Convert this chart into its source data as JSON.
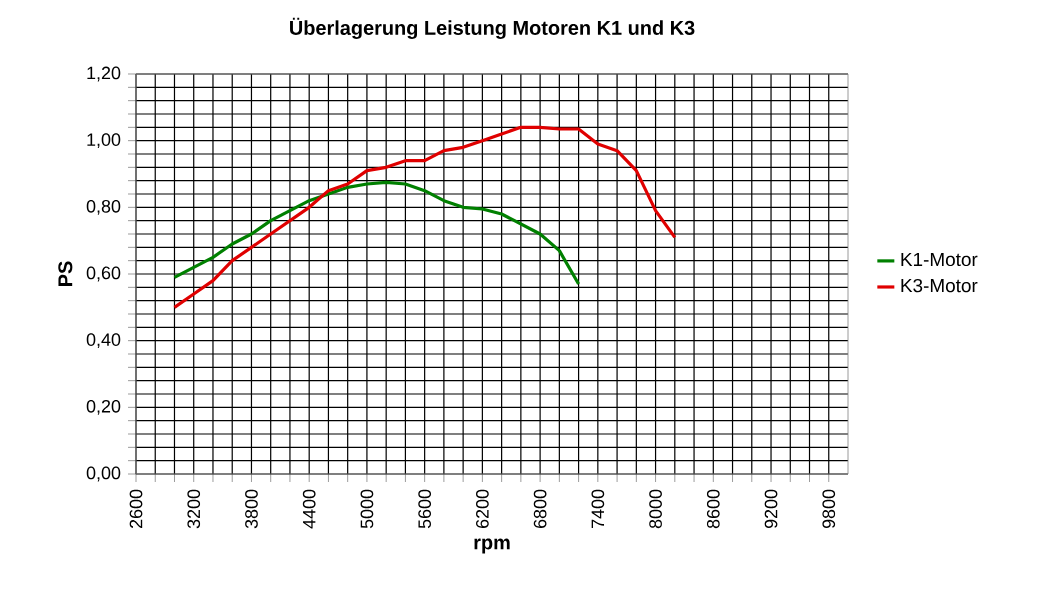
{
  "chart_data": {
    "type": "line",
    "title": "Überlagerung Leistung Motoren K1 und K3",
    "xlabel": "rpm",
    "ylabel": "PS",
    "xlim": [
      2600,
      10000
    ],
    "xticks": [
      2600,
      3200,
      3800,
      4400,
      5000,
      5600,
      6200,
      6800,
      7400,
      8000,
      8600,
      9200,
      9800
    ],
    "ylim": [
      0,
      1.2
    ],
    "yticks": [
      {
        "value": 0,
        "label": "0,00"
      },
      {
        "value": 0.2,
        "label": "0,20"
      },
      {
        "value": 0.4,
        "label": "0,40"
      },
      {
        "value": 0.6,
        "label": "0,60"
      },
      {
        "value": 0.8,
        "label": "0,80"
      },
      {
        "value": 1.0,
        "label": "1,00"
      },
      {
        "value": 1.2,
        "label": "1,20"
      }
    ],
    "grid": true,
    "legend": "right",
    "marker": "none",
    "line_style": "solid",
    "series": [
      {
        "name": "K1-Motor",
        "color": "#008000",
        "x": [
          3000,
          3200,
          3400,
          3600,
          3800,
          4000,
          4200,
          4400,
          4600,
          4800,
          5000,
          5200,
          5400,
          5600,
          5800,
          6000,
          6200,
          6400,
          6600,
          6800,
          7000,
          7200
        ],
        "values": [
          0.59,
          0.62,
          0.65,
          0.69,
          0.72,
          0.76,
          0.79,
          0.82,
          0.84,
          0.86,
          0.87,
          0.875,
          0.87,
          0.85,
          0.82,
          0.8,
          0.795,
          0.78,
          0.75,
          0.72,
          0.67,
          0.57
        ]
      },
      {
        "name": "K3-Motor",
        "color": "#e00000",
        "x": [
          3000,
          3200,
          3400,
          3600,
          3800,
          4000,
          4200,
          4400,
          4600,
          4800,
          5000,
          5200,
          5400,
          5600,
          5800,
          6000,
          6200,
          6400,
          6600,
          6800,
          7000,
          7200,
          7400,
          7600,
          7800,
          8000,
          8200
        ],
        "values": [
          0.5,
          0.54,
          0.58,
          0.64,
          0.68,
          0.72,
          0.76,
          0.8,
          0.85,
          0.87,
          0.91,
          0.92,
          0.94,
          0.94,
          0.97,
          0.98,
          1.0,
          1.02,
          1.04,
          1.04,
          1.035,
          1.035,
          0.99,
          0.97,
          0.91,
          0.79,
          0.71
        ]
      }
    ]
  }
}
